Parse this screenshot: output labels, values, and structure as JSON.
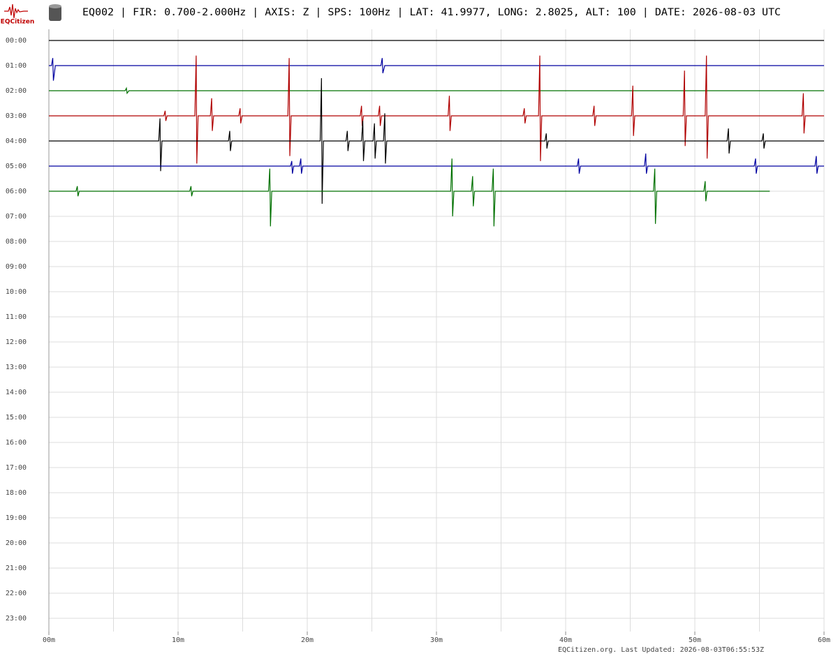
{
  "logo": "EQCitizen",
  "footer": "EQCitizen.org. Last Updated: 2026-08-03T06:55:53Z",
  "chart_data": {
    "type": "helicorder",
    "title": "EQ002 | FIR: 0.700-2.000Hz | AXIS: Z | SPS: 100Hz | LAT: 41.9977, LONG: 2.8025, ALT: 100 | DATE: 2026-08-03 UTC",
    "categories": [
      "00:00",
      "01:00",
      "02:00",
      "03:00",
      "04:00",
      "05:00",
      "06:00",
      "07:00",
      "08:00",
      "09:00",
      "10:00",
      "11:00",
      "12:00",
      "13:00",
      "14:00",
      "15:00",
      "16:00",
      "17:00",
      "18:00",
      "19:00",
      "20:00",
      "21:00",
      "22:00",
      "23:00"
    ],
    "xlim": [
      0,
      60
    ],
    "xticks": [
      {
        "value": 0,
        "label": "00m"
      },
      {
        "value": 10,
        "label": "10m"
      },
      {
        "value": 20,
        "label": "20m"
      },
      {
        "value": 30,
        "label": "30m"
      },
      {
        "value": 40,
        "label": "40m"
      },
      {
        "value": 50,
        "label": "50m"
      },
      {
        "value": 60,
        "label": "60m"
      }
    ],
    "xgrid": [
      0,
      5,
      10,
      15,
      20,
      25,
      30,
      35,
      40,
      45,
      50,
      55,
      60
    ],
    "grid": true,
    "series": [
      {
        "color": "#000000",
        "x": [
          0,
          60
        ],
        "values": [
          0,
          0
        ]
      },
      {
        "color": "#0000a0",
        "x": [
          0,
          0.2,
          0.3,
          0.35,
          0.5,
          25.7,
          25.8,
          25.85,
          26,
          60
        ],
        "values": [
          0,
          0,
          0.3,
          -0.6,
          0,
          0,
          0.3,
          -0.3,
          0,
          0
        ]
      },
      {
        "color": "#007000",
        "x": [
          0,
          5.9,
          6,
          6.05,
          6.2,
          60
        ],
        "values": [
          0,
          0,
          0.1,
          -0.1,
          0,
          0
        ]
      },
      {
        "color": "#b00000",
        "x": [
          0,
          8.9,
          9,
          9.05,
          9.15,
          11.3,
          11.4,
          11.45,
          11.55,
          12.5,
          12.6,
          12.65,
          12.75,
          14.7,
          14.8,
          14.85,
          14.95,
          18.5,
          18.6,
          18.65,
          18.75,
          24.1,
          24.2,
          24.25,
          24.35,
          25.5,
          25.6,
          25.65,
          25.75,
          30.9,
          31,
          31.05,
          31.15,
          36.7,
          36.8,
          36.85,
          36.95,
          37.9,
          38,
          38.05,
          38.15,
          42.1,
          42.2,
          42.25,
          42.35,
          45.1,
          45.2,
          45.25,
          45.35,
          49.1,
          49.2,
          49.25,
          49.35,
          50.8,
          50.9,
          50.95,
          51.05,
          58.3,
          58.4,
          58.45,
          58.55,
          60
        ],
        "values": [
          0,
          0,
          0.2,
          -0.2,
          0,
          0,
          2.4,
          -1.9,
          0,
          0,
          0.7,
          -0.6,
          0,
          0,
          0.3,
          -0.3,
          0,
          0,
          2.3,
          -1.6,
          0,
          0,
          0.4,
          -0.4,
          0,
          0,
          0.4,
          -0.4,
          0,
          0,
          0.8,
          -0.6,
          0,
          0,
          0.3,
          -0.3,
          0,
          0,
          2.4,
          -1.8,
          0,
          0,
          0.4,
          -0.4,
          0,
          0,
          1.2,
          -0.8,
          0,
          0,
          1.8,
          -1.2,
          0,
          0,
          2.4,
          -1.7,
          0,
          0,
          0.9,
          -0.7,
          0,
          0
        ]
      },
      {
        "color": "#000000",
        "x": [
          0,
          8.5,
          8.6,
          8.65,
          8.75,
          13.9,
          14,
          14.05,
          14.15,
          21,
          21.1,
          21.15,
          21.25,
          23,
          23.1,
          23.15,
          23.25,
          24.2,
          24.3,
          24.35,
          24.45,
          25.1,
          25.2,
          25.25,
          25.35,
          25.9,
          26,
          26.05,
          26.15,
          38.4,
          38.5,
          38.55,
          38.65,
          52.5,
          52.6,
          52.65,
          52.75,
          55.2,
          55.3,
          55.35,
          55.45,
          60
        ],
        "values": [
          0,
          0,
          0.9,
          -1.2,
          0,
          0,
          0.4,
          -0.4,
          0,
          0,
          2.5,
          -2.5,
          0,
          0,
          0.4,
          -0.4,
          0,
          0,
          0.8,
          -0.8,
          0,
          0,
          0.7,
          -0.7,
          0,
          0,
          1.1,
          -0.9,
          0,
          0,
          0.3,
          -0.3,
          0,
          0,
          0.5,
          -0.5,
          0,
          0,
          0.3,
          -0.3,
          0,
          0
        ]
      },
      {
        "color": "#0000a0",
        "x": [
          0,
          18.7,
          18.8,
          18.85,
          18.95,
          19.4,
          19.5,
          19.55,
          19.65,
          40.9,
          41,
          41.05,
          41.15,
          46.1,
          46.2,
          46.25,
          46.35,
          54.6,
          54.7,
          54.75,
          54.85,
          59.3,
          59.4,
          59.45,
          59.55,
          60
        ],
        "values": [
          0,
          0,
          0.2,
          -0.3,
          0,
          0,
          0.3,
          -0.3,
          0,
          0,
          0.3,
          -0.3,
          0,
          0,
          0.5,
          -0.3,
          0,
          0,
          0.3,
          -0.3,
          0,
          0,
          0.4,
          -0.3,
          0,
          0
        ]
      },
      {
        "color": "#007000",
        "x": [
          0,
          2.1,
          2.2,
          2.25,
          2.35,
          10.9,
          11,
          11.05,
          11.15,
          17,
          17.1,
          17.15,
          17.25,
          31.1,
          31.2,
          31.25,
          31.35,
          32.7,
          32.8,
          32.85,
          32.95,
          34.3,
          34.4,
          34.45,
          34.55,
          46.8,
          46.9,
          46.95,
          47.05,
          50.7,
          50.8,
          50.85,
          50.95,
          55.8
        ],
        "values": [
          0,
          0,
          0.2,
          -0.2,
          0,
          0,
          0.2,
          -0.2,
          0,
          0,
          0.9,
          -1.4,
          0,
          0,
          1.3,
          -1,
          0,
          0,
          0.6,
          -0.6,
          0,
          0,
          0.9,
          -1.4,
          0,
          0,
          0.9,
          -1.3,
          0,
          0,
          0.4,
          -0.4,
          0,
          0
        ]
      }
    ]
  }
}
